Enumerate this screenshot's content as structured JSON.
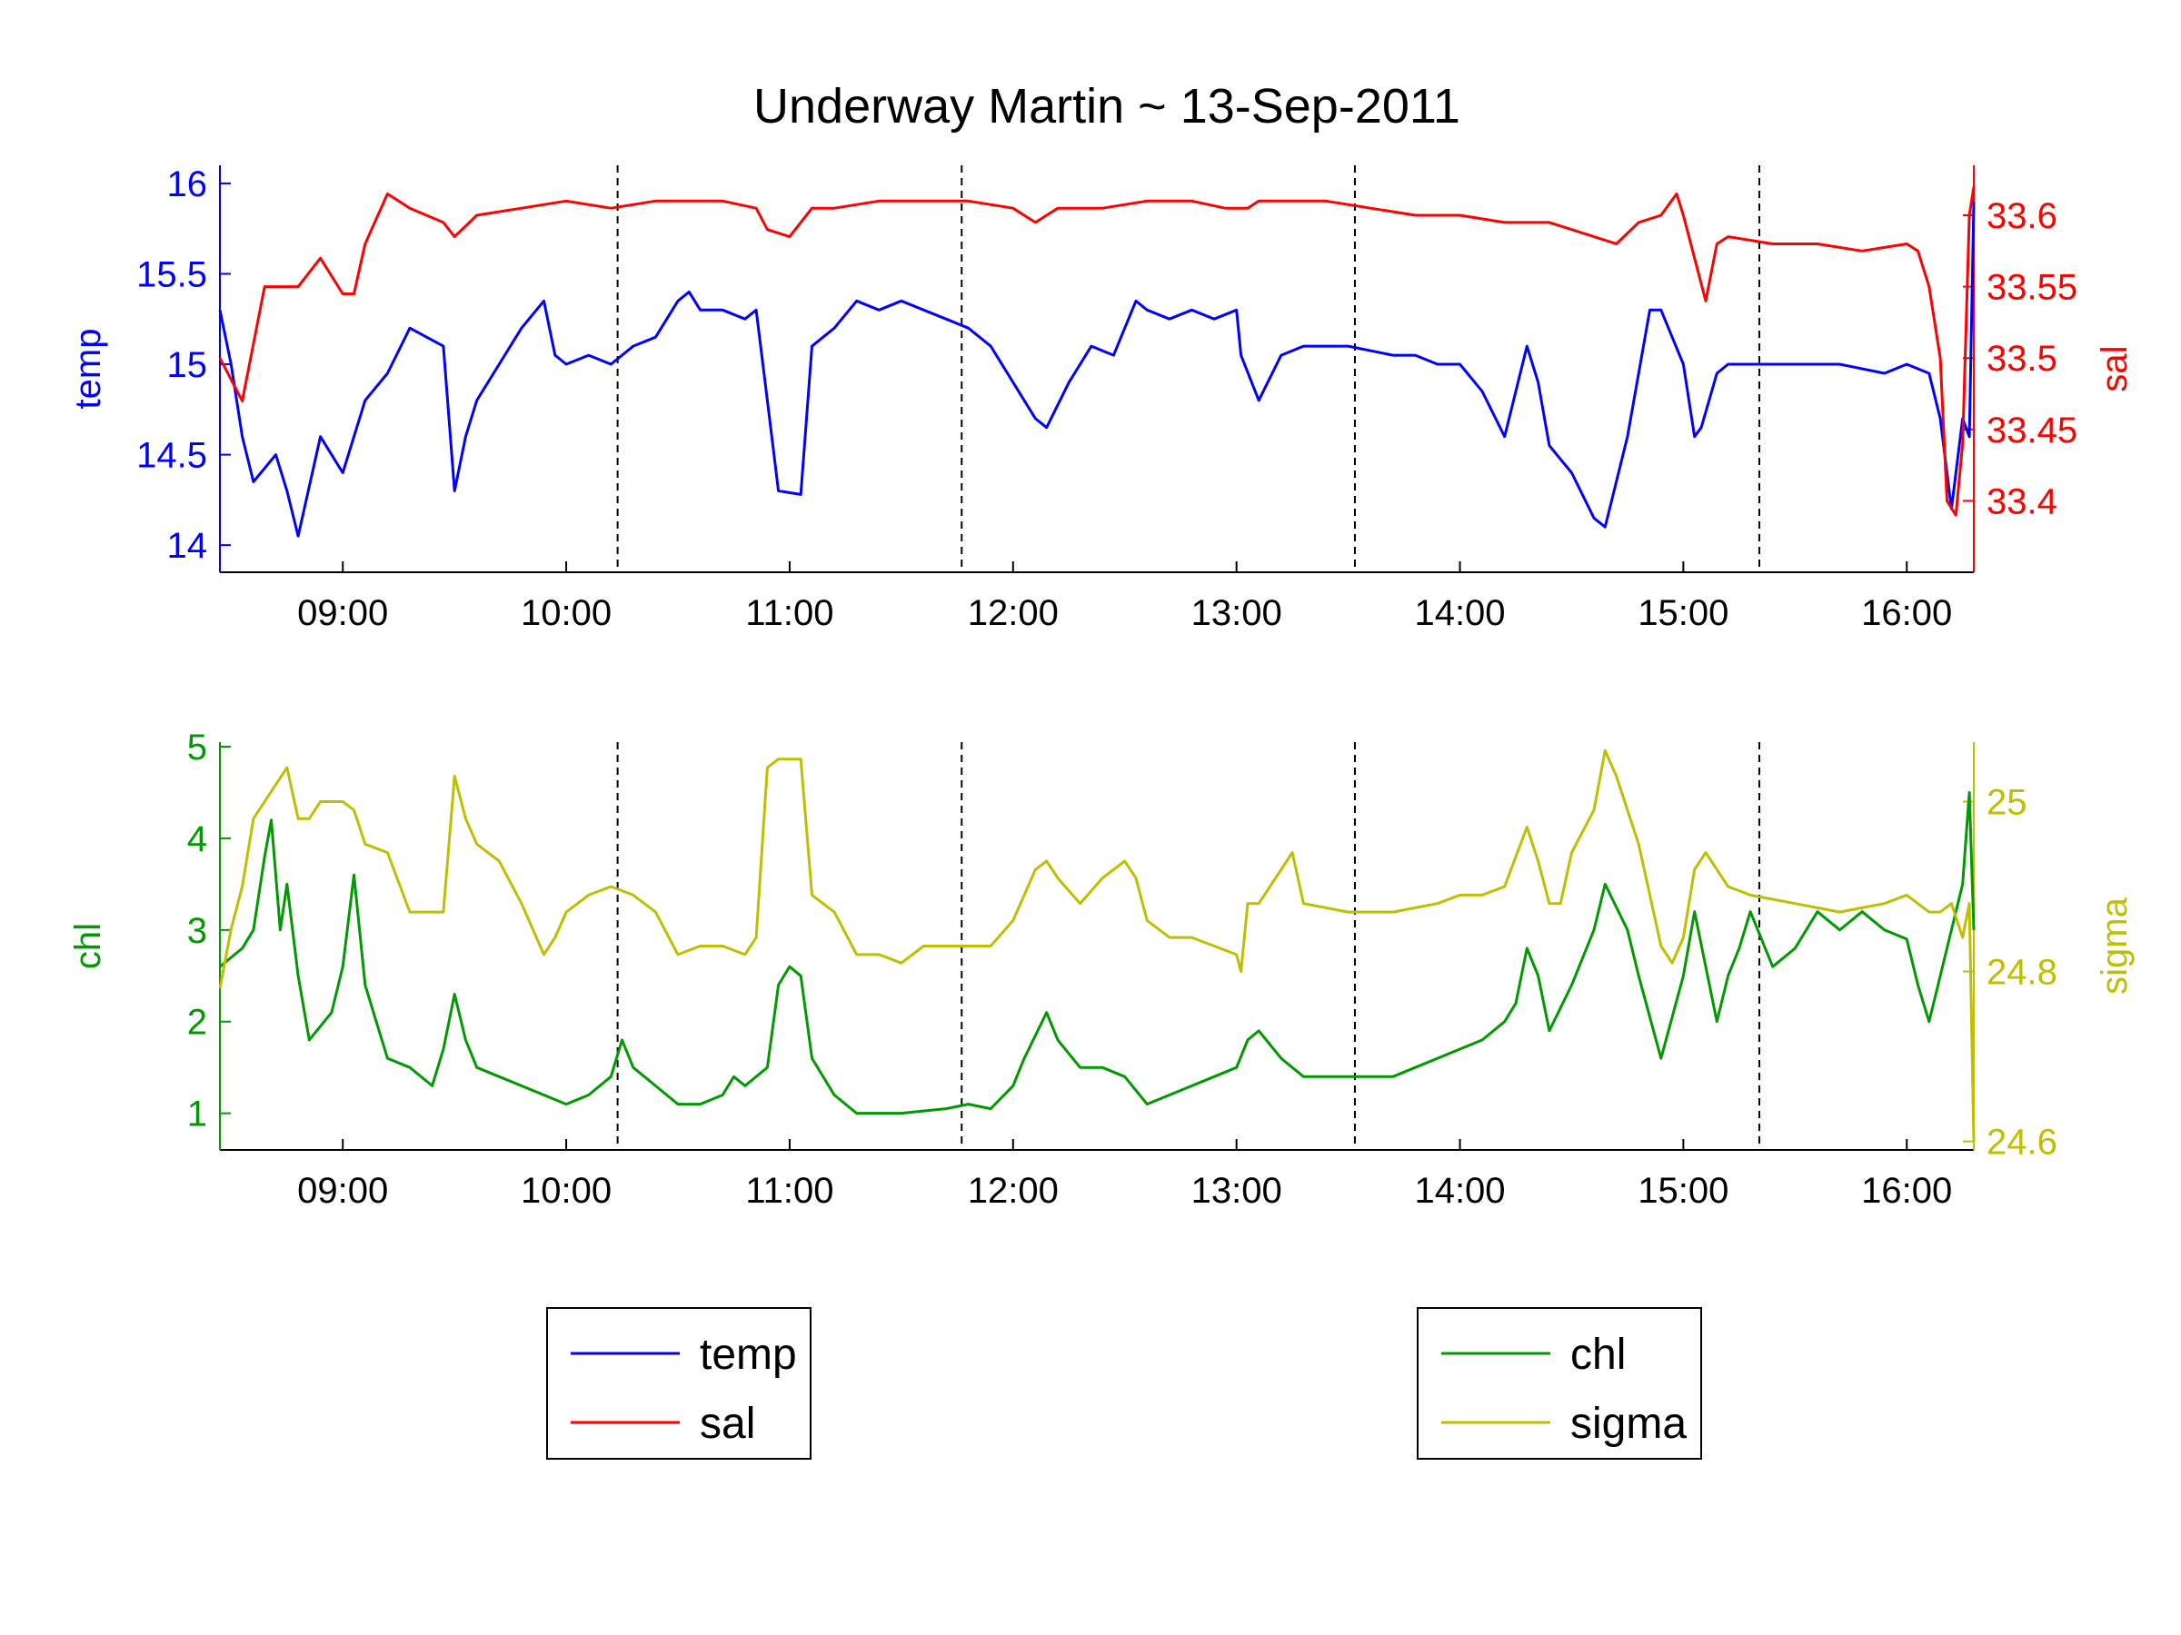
{
  "colors": {
    "temp": "#0000ff",
    "sal": "#ff0000",
    "chl": "#009900",
    "sigma": "#bfbf00",
    "background": "#ffffff",
    "axes": "#000000"
  },
  "chart_data": {
    "title": "Underway Martin ~ 13-Sep-2011",
    "x_tick_labels": [
      "09:00",
      "10:00",
      "11:00",
      "12:00",
      "13:00",
      "14:00",
      "15:00",
      "16:00"
    ],
    "x_ticks_hours": [
      9,
      10,
      11,
      12,
      13,
      14,
      15,
      16
    ],
    "xlim_hours": [
      8.45,
      16.3
    ],
    "station_markers_hours": [
      10.23,
      11.77,
      13.53,
      15.34
    ],
    "grid": false,
    "panels": [
      {
        "type": "line",
        "left_axis": {
          "label": "temp",
          "ylim": [
            13.85,
            16.1
          ],
          "ticks": [
            14,
            14.5,
            15,
            15.5,
            16
          ],
          "tick_labels": [
            "14",
            "14.5",
            "15",
            "15.5",
            "16"
          ]
        },
        "right_axis": {
          "label": "sal",
          "ylim": [
            33.35,
            33.635
          ],
          "ticks": [
            33.4,
            33.45,
            33.5,
            33.55,
            33.6
          ],
          "tick_labels": [
            "33.4",
            "33.45",
            "33.5",
            "33.55",
            "33.6"
          ]
        },
        "series": [
          {
            "name": "temp",
            "axis": "left",
            "x": [
              8.45,
              8.5,
              8.55,
              8.6,
              8.7,
              8.75,
              8.8,
              8.9,
              9.0,
              9.1,
              9.2,
              9.3,
              9.45,
              9.5,
              9.55,
              9.6,
              9.7,
              9.8,
              9.9,
              9.95,
              10.0,
              10.1,
              10.2,
              10.3,
              10.4,
              10.5,
              10.55,
              10.6,
              10.7,
              10.8,
              10.85,
              10.9,
              10.95,
              11.05,
              11.1,
              11.2,
              11.3,
              11.4,
              11.5,
              11.6,
              11.7,
              11.8,
              11.9,
              12.0,
              12.1,
              12.15,
              12.25,
              12.35,
              12.45,
              12.55,
              12.6,
              12.7,
              12.8,
              12.9,
              13.0,
              13.02,
              13.1,
              13.2,
              13.3,
              13.5,
              13.7,
              13.8,
              13.9,
              14.0,
              14.1,
              14.2,
              14.3,
              14.35,
              14.4,
              14.5,
              14.6,
              14.65,
              14.75,
              14.85,
              14.9,
              15.0,
              15.05,
              15.08,
              15.15,
              15.2,
              15.3,
              15.5,
              15.7,
              15.9,
              16.0,
              16.1,
              16.15,
              16.2,
              16.25,
              16.28,
              16.3
            ],
            "values": [
              15.3,
              15.0,
              14.6,
              14.35,
              14.5,
              14.3,
              14.05,
              14.6,
              14.4,
              14.8,
              14.95,
              15.2,
              15.1,
              14.3,
              14.6,
              14.8,
              15.0,
              15.2,
              15.35,
              15.05,
              15.0,
              15.05,
              15.0,
              15.1,
              15.15,
              15.35,
              15.4,
              15.3,
              15.3,
              15.25,
              15.3,
              14.8,
              14.3,
              14.28,
              15.1,
              15.2,
              15.35,
              15.3,
              15.35,
              15.3,
              15.25,
              15.2,
              15.1,
              14.9,
              14.7,
              14.65,
              14.9,
              15.1,
              15.05,
              15.35,
              15.3,
              15.25,
              15.3,
              15.25,
              15.3,
              15.05,
              14.8,
              15.05,
              15.1,
              15.1,
              15.05,
              15.05,
              15.0,
              15.0,
              14.85,
              14.6,
              15.1,
              14.9,
              14.55,
              14.4,
              14.15,
              14.1,
              14.6,
              15.3,
              15.3,
              15.0,
              14.6,
              14.65,
              14.95,
              15.0,
              15.0,
              15.0,
              15.0,
              14.95,
              15.0,
              14.95,
              14.7,
              14.2,
              14.7,
              14.6,
              15.9
            ]
          },
          {
            "name": "sal",
            "axis": "right",
            "x": [
              8.45,
              8.55,
              8.6,
              8.65,
              8.8,
              8.9,
              9.0,
              9.05,
              9.1,
              9.2,
              9.3,
              9.45,
              9.5,
              9.6,
              9.8,
              10.0,
              10.2,
              10.4,
              10.5,
              10.7,
              10.85,
              10.9,
              11.0,
              11.1,
              11.2,
              11.4,
              11.6,
              11.8,
              12.0,
              12.1,
              12.2,
              12.4,
              12.6,
              12.8,
              12.95,
              13.05,
              13.1,
              13.2,
              13.4,
              13.6,
              13.8,
              14.0,
              14.2,
              14.35,
              14.4,
              14.5,
              14.6,
              14.7,
              14.8,
              14.9,
              14.97,
              15.0,
              15.05,
              15.1,
              15.15,
              15.2,
              15.4,
              15.6,
              15.8,
              16.0,
              16.05,
              16.1,
              16.15,
              16.18,
              16.22,
              16.25,
              16.28,
              16.3
            ],
            "values": [
              33.5,
              33.47,
              33.51,
              33.55,
              33.55,
              33.57,
              33.545,
              33.545,
              33.58,
              33.615,
              33.605,
              33.595,
              33.585,
              33.6,
              33.605,
              33.61,
              33.605,
              33.61,
              33.61,
              33.61,
              33.605,
              33.59,
              33.585,
              33.605,
              33.605,
              33.61,
              33.61,
              33.61,
              33.605,
              33.595,
              33.605,
              33.605,
              33.61,
              33.61,
              33.605,
              33.605,
              33.61,
              33.61,
              33.61,
              33.605,
              33.6,
              33.6,
              33.595,
              33.595,
              33.595,
              33.59,
              33.585,
              33.58,
              33.595,
              33.6,
              33.615,
              33.6,
              33.57,
              33.54,
              33.58,
              33.585,
              33.58,
              33.58,
              33.575,
              33.58,
              33.575,
              33.55,
              33.5,
              33.4,
              33.39,
              33.44,
              33.6,
              33.62
            ]
          }
        ]
      },
      {
        "type": "line",
        "left_axis": {
          "label": "chl",
          "ylim": [
            0.6,
            5.05
          ],
          "ticks": [
            1,
            2,
            3,
            4,
            5
          ],
          "tick_labels": [
            "1",
            "2",
            "3",
            "4",
            "5"
          ]
        },
        "right_axis": {
          "label": "sigma",
          "ylim": [
            24.59,
            25.07
          ],
          "ticks": [
            24.6,
            24.8,
            25.0
          ],
          "tick_labels": [
            "24.6",
            "24.8",
            "25"
          ]
        },
        "series": [
          {
            "name": "chl",
            "axis": "left",
            "x": [
              8.45,
              8.55,
              8.6,
              8.65,
              8.68,
              8.72,
              8.75,
              8.8,
              8.85,
              8.95,
              9.0,
              9.05,
              9.1,
              9.2,
              9.3,
              9.4,
              9.45,
              9.5,
              9.55,
              9.6,
              9.7,
              9.8,
              9.9,
              10.0,
              10.1,
              10.15,
              10.2,
              10.25,
              10.3,
              10.4,
              10.5,
              10.6,
              10.7,
              10.75,
              10.8,
              10.9,
              10.95,
              11.0,
              11.05,
              11.1,
              11.2,
              11.3,
              11.5,
              11.7,
              11.8,
              11.9,
              12.0,
              12.05,
              12.15,
              12.2,
              12.3,
              12.4,
              12.5,
              12.6,
              12.7,
              12.8,
              12.9,
              13.0,
              13.05,
              13.1,
              13.2,
              13.3,
              13.4,
              13.5,
              13.6,
              13.7,
              13.8,
              13.9,
              14.0,
              14.1,
              14.2,
              14.25,
              14.3,
              14.35,
              14.4,
              14.5,
              14.6,
              14.65,
              14.75,
              14.8,
              14.9,
              15.0,
              15.05,
              15.1,
              15.15,
              15.2,
              15.25,
              15.3,
              15.35,
              15.4,
              15.5,
              15.6,
              15.7,
              15.8,
              15.9,
              16.0,
              16.05,
              16.1,
              16.15,
              16.2,
              16.25,
              16.28,
              16.3
            ],
            "values": [
              2.6,
              2.8,
              3.0,
              3.8,
              4.2,
              3.0,
              3.5,
              2.5,
              1.8,
              2.1,
              2.6,
              3.6,
              2.4,
              1.6,
              1.5,
              1.3,
              1.7,
              2.3,
              1.8,
              1.5,
              1.4,
              1.3,
              1.2,
              1.1,
              1.2,
              1.3,
              1.4,
              1.8,
              1.5,
              1.3,
              1.1,
              1.1,
              1.2,
              1.4,
              1.3,
              1.5,
              2.4,
              2.6,
              2.5,
              1.6,
              1.2,
              1.0,
              1.0,
              1.05,
              1.1,
              1.05,
              1.3,
              1.6,
              2.1,
              1.8,
              1.5,
              1.5,
              1.4,
              1.1,
              1.2,
              1.3,
              1.4,
              1.5,
              1.8,
              1.9,
              1.6,
              1.4,
              1.4,
              1.4,
              1.4,
              1.4,
              1.5,
              1.6,
              1.7,
              1.8,
              2.0,
              2.2,
              2.8,
              2.5,
              1.9,
              2.4,
              3.0,
              3.5,
              3.0,
              2.5,
              1.6,
              2.5,
              3.2,
              2.6,
              2.0,
              2.5,
              2.8,
              3.2,
              2.9,
              2.6,
              2.8,
              3.2,
              3.0,
              3.2,
              3.0,
              2.9,
              2.4,
              2.0,
              2.5,
              3.0,
              3.5,
              4.5,
              3.0
            ]
          },
          {
            "name": "sigma",
            "axis": "right",
            "x": [
              8.45,
              8.5,
              8.55,
              8.6,
              8.7,
              8.75,
              8.8,
              8.85,
              8.9,
              9.0,
              9.05,
              9.1,
              9.2,
              9.3,
              9.4,
              9.45,
              9.5,
              9.55,
              9.6,
              9.7,
              9.8,
              9.9,
              9.95,
              10.0,
              10.1,
              10.2,
              10.3,
              10.4,
              10.5,
              10.6,
              10.7,
              10.8,
              10.85,
              10.9,
              10.95,
              11.05,
              11.1,
              11.2,
              11.3,
              11.4,
              11.5,
              11.6,
              11.7,
              11.8,
              11.9,
              12.0,
              12.1,
              12.15,
              12.2,
              12.3,
              12.4,
              12.5,
              12.55,
              12.6,
              12.7,
              12.8,
              12.9,
              13.0,
              13.02,
              13.05,
              13.1,
              13.2,
              13.25,
              13.3,
              13.5,
              13.7,
              13.9,
              14.0,
              14.1,
              14.2,
              14.3,
              14.35,
              14.4,
              14.45,
              14.5,
              14.6,
              14.65,
              14.7,
              14.8,
              14.9,
              14.95,
              15.0,
              15.05,
              15.1,
              15.15,
              15.2,
              15.3,
              15.5,
              15.7,
              15.9,
              16.0,
              16.1,
              16.15,
              16.2,
              16.25,
              16.28,
              16.3
            ],
            "values": [
              24.78,
              24.85,
              24.9,
              24.98,
              25.02,
              25.04,
              24.98,
              24.98,
              25.0,
              25.0,
              24.99,
              24.95,
              24.94,
              24.87,
              24.87,
              24.87,
              25.03,
              24.98,
              24.95,
              24.93,
              24.88,
              24.82,
              24.84,
              24.87,
              24.89,
              24.9,
              24.89,
              24.87,
              24.82,
              24.83,
              24.83,
              24.82,
              24.84,
              25.04,
              25.05,
              25.05,
              24.89,
              24.87,
              24.82,
              24.82,
              24.81,
              24.83,
              24.83,
              24.83,
              24.83,
              24.86,
              24.92,
              24.93,
              24.91,
              24.88,
              24.91,
              24.93,
              24.91,
              24.86,
              24.84,
              24.84,
              24.83,
              24.82,
              24.8,
              24.88,
              24.88,
              24.92,
              24.94,
              24.88,
              24.87,
              24.87,
              24.88,
              24.89,
              24.89,
              24.9,
              24.97,
              24.93,
              24.88,
              24.88,
              24.94,
              24.99,
              25.06,
              25.03,
              24.95,
              24.83,
              24.81,
              24.84,
              24.92,
              24.94,
              24.92,
              24.9,
              24.89,
              24.88,
              24.87,
              24.88,
              24.89,
              24.87,
              24.87,
              24.88,
              24.84,
              24.88,
              24.6
            ]
          }
        ]
      }
    ],
    "legends": [
      {
        "entries": [
          {
            "label": "temp",
            "series": "temp"
          },
          {
            "label": "sal",
            "series": "sal"
          }
        ],
        "placement": "bottom-left"
      },
      {
        "entries": [
          {
            "label": "chl",
            "series": "chl"
          },
          {
            "label": "sigma",
            "series": "sigma"
          }
        ],
        "placement": "bottom-right"
      }
    ]
  }
}
